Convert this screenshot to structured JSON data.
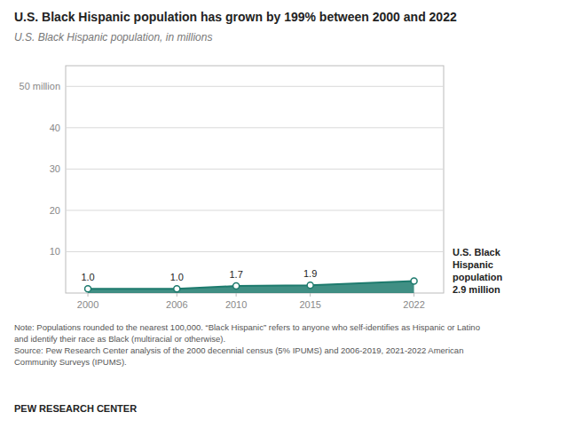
{
  "chart_data": {
    "type": "area",
    "title": "U.S. Black Hispanic population has grown by 199% between 2000 and 2022",
    "subtitle": "U.S. Black Hispanic population, in millions",
    "x": [
      2000,
      2006,
      2010,
      2015,
      2022
    ],
    "values": [
      1.0,
      1.0,
      1.7,
      1.9,
      2.9
    ],
    "value_labels": [
      "1.0",
      "1.0",
      "1.7",
      "1.9",
      null
    ],
    "data_labels": true,
    "color": "#1e7b6e",
    "marker": "circle",
    "xlim": [
      1998.5,
      2024
    ],
    "xticks": [
      2000,
      2006,
      2010,
      2015,
      2022
    ],
    "ylim": [
      0,
      55
    ],
    "yticks": [
      10,
      20,
      30,
      40,
      {
        "value": 50,
        "label": "50 million"
      }
    ],
    "grid": true,
    "annotation": "U.S. Black\nHispanic\npopulation\n2.9 million",
    "note": "Note: Populations rounded to the nearest 100,000. “Black Hispanic” refers to anyone who self-identifies as Hispanic or Latino\nand identify their race as Black (multiracial or otherwise).\nSource: Pew Research Center analysis of the 2000 decennial census (5% IPUMS) and 2006-2019, 2021-2022 American\nCommunity Surveys (IPUMS).",
    "footer": "PEW RESEARCH CENTER"
  }
}
